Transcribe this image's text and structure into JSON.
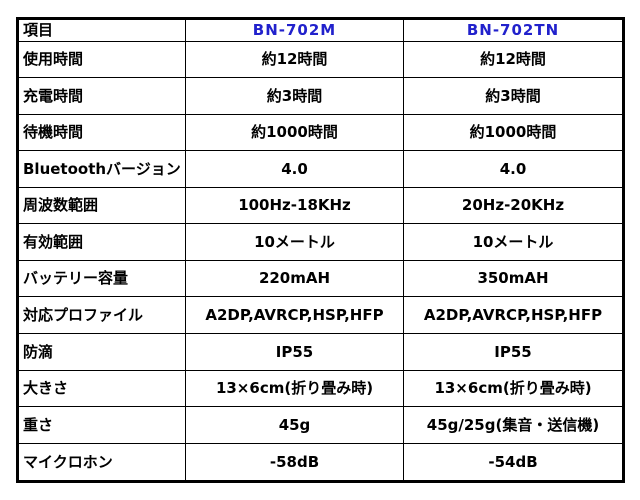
{
  "colors": {
    "product_name": "#2121cc",
    "border": "#000000",
    "text": "#000000",
    "background": "#ffffff"
  },
  "table": {
    "header": {
      "item": "項目",
      "product1": "BN-702M",
      "product2": "BN-702TN"
    },
    "rows": [
      {
        "label": "使用時間",
        "v1": "約12時間",
        "v2": "約12時間"
      },
      {
        "label": "充電時間",
        "v1": "約3時間",
        "v2": "約3時間"
      },
      {
        "label": "待機時間",
        "v1": "約1000時間",
        "v2": "約1000時間"
      },
      {
        "label": "Bluetoothバージョン",
        "v1": "4.0",
        "v2": "4.0"
      },
      {
        "label": "周波数範囲",
        "v1": "100Hz-18KHz",
        "v2": "20Hz-20KHz"
      },
      {
        "label": "有効範囲",
        "v1": "10メートル",
        "v2": "10メートル"
      },
      {
        "label": "バッテリー容量",
        "v1": "220mAH",
        "v2": "350mAH"
      },
      {
        "label": "対応プロファイル",
        "v1": "A2DP,AVRCP,HSP,HFP",
        "v2": "A2DP,AVRCP,HSP,HFP"
      },
      {
        "label": "防滴",
        "v1": "IP55",
        "v2": "IP55"
      },
      {
        "label": "大きさ",
        "v1": "13×6cm(折り畳み時)",
        "v2": "13×6cm(折り畳み時)"
      },
      {
        "label": "重さ",
        "v1": "45g",
        "v2": "45g/25g(集音・送信機)"
      },
      {
        "label": "マイクロホン",
        "v1": "-58dB",
        "v2": "-54dB"
      }
    ]
  }
}
